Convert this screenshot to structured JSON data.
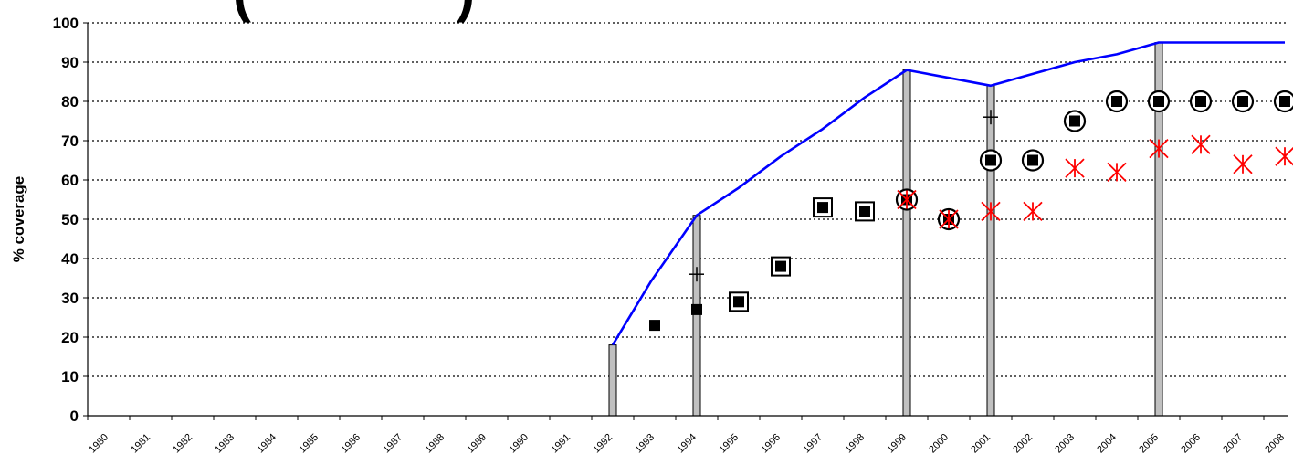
{
  "chart_data": {
    "type": "line",
    "title": "(",
    "title_tail": ")",
    "ylabel": "% coverage",
    "ylim": [
      0,
      100
    ],
    "yticks": [
      0,
      10,
      20,
      30,
      40,
      50,
      60,
      70,
      80,
      90,
      100
    ],
    "grid": true,
    "categories": [
      "1980",
      "1981",
      "1982",
      "1983",
      "1984",
      "1985",
      "1986",
      "1987",
      "1988",
      "1989",
      "1990",
      "1991",
      "1992",
      "1993",
      "1994",
      "1995",
      "1996",
      "1997",
      "1998",
      "1999",
      "2000",
      "2001",
      "2002",
      "2003",
      "2004",
      "2005",
      "2006",
      "2007",
      "2008"
    ],
    "colors": {
      "line": "#0000ff",
      "bars": "#c0c0c0",
      "square_markers": "#000000",
      "star_markers": "#ff0000",
      "grid": "#000000"
    },
    "series": [
      {
        "kind": "line",
        "points": [
          [
            1992.5,
            18
          ],
          [
            1993.4,
            34
          ],
          [
            1994.5,
            51
          ],
          [
            1995.5,
            58
          ],
          [
            1996.5,
            66
          ],
          [
            1997.5,
            73
          ],
          [
            1998.5,
            81
          ],
          [
            1999.5,
            88
          ],
          [
            2000.5,
            86
          ],
          [
            2001.5,
            84
          ],
          [
            2002.5,
            87
          ],
          [
            2003.5,
            90
          ],
          [
            2004.5,
            92
          ],
          [
            2005.5,
            95
          ],
          [
            2006.5,
            95
          ],
          [
            2007.5,
            95
          ],
          [
            2008.5,
            95
          ]
        ]
      },
      {
        "kind": "bar",
        "points": [
          [
            1992.5,
            18
          ],
          [
            1994.5,
            51
          ],
          [
            1999.5,
            88
          ],
          [
            2001.5,
            84
          ],
          [
            2005.5,
            95
          ]
        ]
      },
      {
        "kind": "plus",
        "points": [
          [
            1994.5,
            36
          ],
          [
            2001.5,
            76
          ]
        ]
      },
      {
        "kind": "filled-square",
        "points": [
          [
            1993.5,
            23
          ],
          [
            1994.5,
            27
          ]
        ]
      },
      {
        "kind": "boxed-square",
        "points": [
          [
            1995.5,
            29
          ],
          [
            1996.5,
            38
          ],
          [
            1997.5,
            53
          ],
          [
            1998.5,
            52
          ]
        ]
      },
      {
        "kind": "circled-square",
        "points": [
          [
            1999.5,
            55
          ],
          [
            2000.5,
            50
          ],
          [
            2001.5,
            65
          ],
          [
            2002.5,
            65
          ],
          [
            2003.5,
            75
          ],
          [
            2004.5,
            80
          ],
          [
            2005.5,
            80
          ],
          [
            2006.5,
            80
          ],
          [
            2007.5,
            80
          ],
          [
            2008.5,
            80
          ]
        ]
      },
      {
        "kind": "star",
        "points": [
          [
            1999.5,
            55
          ],
          [
            2000.5,
            50
          ],
          [
            2001.5,
            52
          ],
          [
            2002.5,
            52
          ],
          [
            2003.5,
            63
          ],
          [
            2004.5,
            62
          ],
          [
            2005.5,
            68
          ],
          [
            2006.5,
            69
          ],
          [
            2007.5,
            64
          ],
          [
            2008.5,
            66
          ]
        ]
      }
    ]
  }
}
